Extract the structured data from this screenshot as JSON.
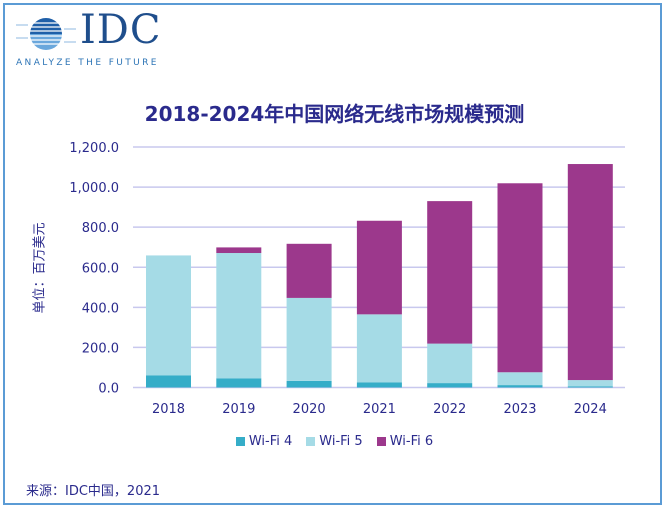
{
  "logo": {
    "text": "IDC",
    "tagline": "ANALYZE THE FUTURE"
  },
  "source": "来源：IDC中国，2021",
  "colors": {
    "wifi4": "#35adc8",
    "wifi5": "#a5dbe6",
    "wifi6": "#9c388c",
    "grid": "#c8c8ee",
    "text": "#2a2a8c"
  },
  "chart_data": {
    "type": "bar",
    "stacked": true,
    "title": "2018-2024年中国网络无线市场规模预测",
    "ylabel": "单位：百万美元",
    "xlabel": "",
    "ylim": [
      0,
      1200
    ],
    "yticks": [
      "0.0",
      "200.0",
      "400.0",
      "600.0",
      "800.0",
      "1,000.0",
      "1,200.0"
    ],
    "grid": true,
    "legend_position": "bottom",
    "categories": [
      "2018",
      "2019",
      "2020",
      "2021",
      "2022",
      "2023",
      "2024"
    ],
    "series": [
      {
        "name": "Wi-Fi 4",
        "values": [
          61,
          46,
          33,
          25,
          22,
          12,
          5
        ]
      },
      {
        "name": "Wi-Fi 5",
        "values": [
          598,
          625,
          414,
          340,
          197,
          64,
          32
        ]
      },
      {
        "name": "Wi-Fi 6",
        "values": [
          0,
          28,
          270,
          467,
          711,
          943,
          1078
        ]
      }
    ]
  }
}
